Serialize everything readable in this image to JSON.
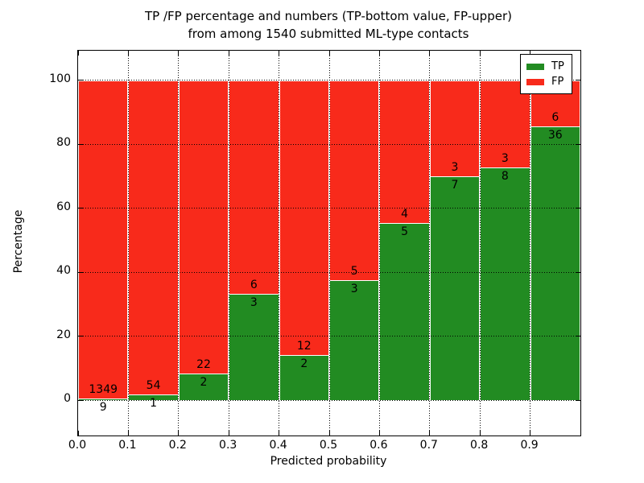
{
  "title": {
    "line1": "TP /FP percentage and numbers (TP-bottom value, FP-upper)",
    "line2": "from among 1540 submitted ML-type contacts"
  },
  "chart_data": {
    "type": "bar",
    "stacked": true,
    "normalized_to_percent": true,
    "title": "TP /FP percentage and numbers (TP-bottom value, FP-upper) from among 1540 submitted ML-type contacts",
    "xlabel": "Predicted probability",
    "ylabel": "Percentage",
    "xlim": [
      0.0,
      1.0
    ],
    "ylim": [
      -11.0,
      109.3
    ],
    "x_ticks": [
      "0.0",
      "0.1",
      "0.2",
      "0.3",
      "0.4",
      "0.5",
      "0.6",
      "0.7",
      "0.8",
      "0.9"
    ],
    "y_ticks": [
      0,
      20,
      40,
      60,
      80,
      100
    ],
    "grid": "dotted black on both axes",
    "bin_width": 0.1,
    "bin_starts": [
      0.0,
      0.1,
      0.2,
      0.3,
      0.4,
      0.5,
      0.6,
      0.7,
      0.8,
      0.9
    ],
    "series": [
      {
        "name": "TP",
        "color": "#228b22",
        "counts": [
          9,
          1,
          2,
          3,
          2,
          3,
          5,
          7,
          8,
          36
        ]
      },
      {
        "name": "FP",
        "color": "#f82a1b",
        "counts": [
          1349,
          54,
          22,
          6,
          12,
          5,
          4,
          3,
          3,
          6
        ]
      }
    ],
    "percent_tp": [
      0.66,
      1.82,
      8.33,
      33.33,
      14.29,
      37.5,
      55.56,
      70.0,
      72.73,
      85.71
    ],
    "total_contacts": 1540,
    "legend": {
      "position": "upper right",
      "entries": [
        "TP",
        "FP"
      ]
    }
  },
  "colors": {
    "tp_green": "#228b22",
    "fp_red": "#f82a1b",
    "grid": "#000000",
    "bar_edge": "#ffffff",
    "background": "#ffffff",
    "text": "#000000"
  }
}
